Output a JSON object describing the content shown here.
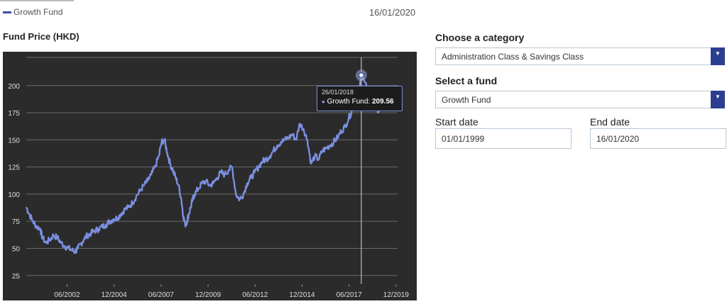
{
  "header": {
    "legend_label": "Growth Fund",
    "date": "16/01/2020",
    "legend_color": "#3a4fa3"
  },
  "chart_title": "Fund Price (HKD)",
  "panel": {
    "category_label": "Choose a category",
    "category_value": "Administration Class & Savings Class",
    "fund_label": "Select a fund",
    "fund_value": "Growth Fund",
    "start_label": "Start date",
    "start_value": "01/01/1999",
    "end_label": "End date",
    "end_value": "16/01/2020",
    "accent_color": "#2c3e8f"
  },
  "tooltip": {
    "date": "26/01/2018",
    "series": "Growth Fund:",
    "value": "209.56"
  },
  "chart_data": {
    "type": "line",
    "title": "Fund Price (HKD)",
    "xlabel": "",
    "ylabel": "",
    "xlim": [
      2000.25,
      2020.0
    ],
    "ylim": [
      17,
      226
    ],
    "yticks": [
      25,
      50,
      75,
      100,
      125,
      150,
      175,
      200
    ],
    "xticks": [
      {
        "label": "06/2002",
        "x": 2002.42
      },
      {
        "label": "12/2004",
        "x": 2004.92
      },
      {
        "label": "06/2007",
        "x": 2007.42
      },
      {
        "label": "12/2009",
        "x": 2009.92
      },
      {
        "label": "06/2012",
        "x": 2012.42
      },
      {
        "label": "12/2014",
        "x": 2014.92
      },
      {
        "label": "06/2017",
        "x": 2017.42
      },
      {
        "label": "12/2019",
        "x": 2019.92
      }
    ],
    "grid": true,
    "line_color": "#7b8fe0",
    "series": [
      {
        "name": "Growth Fund",
        "x": [
          2000.25,
          2000.4,
          2000.6,
          2000.8,
          2001.0,
          2001.1,
          2001.3,
          2001.5,
          2001.7,
          2001.9,
          2002.1,
          2002.3,
          2002.5,
          2002.7,
          2002.85,
          2003.0,
          2003.15,
          2003.3,
          2003.5,
          2003.7,
          2003.9,
          2004.1,
          2004.3,
          2004.5,
          2004.7,
          2004.9,
          2005.1,
          2005.3,
          2005.5,
          2005.7,
          2005.9,
          2006.1,
          2006.3,
          2006.5,
          2006.7,
          2006.9,
          2007.1,
          2007.3,
          2007.45,
          2007.6,
          2007.75,
          2007.9,
          2008.05,
          2008.2,
          2008.35,
          2008.5,
          2008.6,
          2008.7,
          2008.8,
          2008.9,
          2009.0,
          2009.1,
          2009.2,
          2009.4,
          2009.6,
          2009.8,
          2010.0,
          2010.2,
          2010.4,
          2010.6,
          2010.8,
          2011.0,
          2011.2,
          2011.4,
          2011.6,
          2011.8,
          2012.0,
          2012.2,
          2012.4,
          2012.6,
          2012.8,
          2013.0,
          2013.2,
          2013.4,
          2013.6,
          2013.8,
          2014.0,
          2014.2,
          2014.4,
          2014.6,
          2014.8,
          2015.0,
          2015.2,
          2015.4,
          2015.6,
          2015.8,
          2016.0,
          2016.2,
          2016.4,
          2016.6,
          2016.8,
          2017.0,
          2017.2,
          2017.4,
          2017.6,
          2017.8,
          2018.0,
          2018.07,
          2018.2,
          2018.4,
          2018.6,
          2018.8,
          2018.95,
          2019.1,
          2019.3,
          2019.5,
          2019.7,
          2019.85,
          2020.0
        ],
        "values": [
          88,
          82,
          75,
          70,
          68,
          60,
          55,
          58,
          62,
          60,
          55,
          52,
          50,
          48,
          47,
          50,
          54,
          58,
          62,
          64,
          66,
          68,
          70,
          72,
          75,
          77,
          78,
          82,
          86,
          88,
          92,
          98,
          103,
          108,
          112,
          118,
          125,
          135,
          148,
          150,
          138,
          128,
          122,
          115,
          108,
          95,
          80,
          72,
          75,
          82,
          88,
          95,
          100,
          105,
          110,
          112,
          108,
          110,
          115,
          120,
          118,
          122,
          125,
          100,
          95,
          100,
          110,
          115,
          120,
          125,
          130,
          132,
          135,
          140,
          145,
          148,
          150,
          152,
          155,
          150,
          165,
          160,
          150,
          128,
          135,
          132,
          140,
          142,
          145,
          148,
          152,
          158,
          162,
          170,
          178,
          190,
          200,
          209.56,
          205,
          195,
          185,
          190,
          175,
          182,
          188,
          192,
          195,
          198,
          200
        ]
      }
    ]
  }
}
